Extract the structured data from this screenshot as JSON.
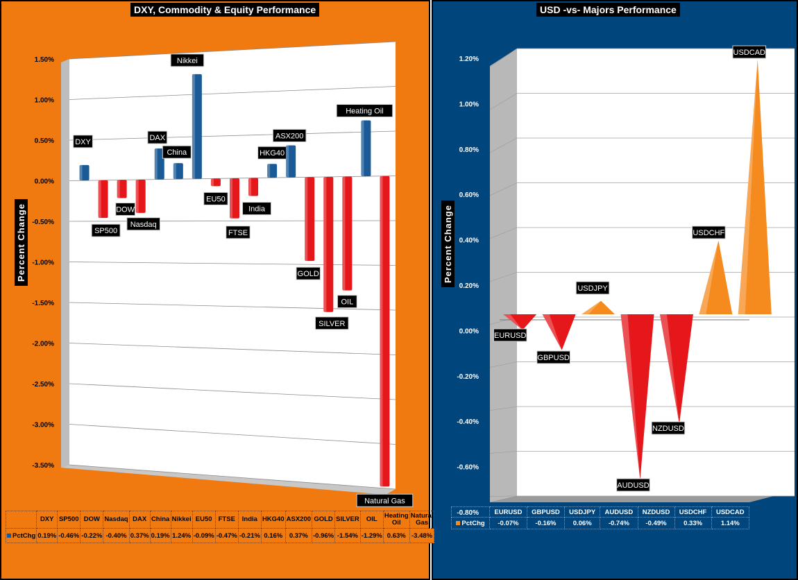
{
  "colors": {
    "left_bg": "#f07a10",
    "right_bg": "#00457c",
    "positive": "#1a5a96",
    "negative": "#e5171b",
    "positive_right": "#f58a1e",
    "negative_right": "#e5171b"
  },
  "left": {
    "title": "DXY, Commodity & Equity Performance",
    "ylabel": "Percent Change",
    "legend": "PctChg"
  },
  "right": {
    "title": "USD -vs- Majors Performance",
    "ylabel": "Percent Change",
    "legend": "PctChg"
  },
  "chart_data": [
    {
      "type": "bar",
      "title": "DXY, Commodity & Equity Performance",
      "ylabel": "Percent Change",
      "categories": [
        "DXY",
        "SP500",
        "DOW",
        "Nasdaq",
        "DAX",
        "China",
        "Nikkei",
        "EU50",
        "FTSE",
        "India",
        "HKG40",
        "ASX200",
        "GOLD",
        "SILVER",
        "OIL",
        "Heating Oil",
        "Natural Gas"
      ],
      "table_headers": [
        "DXY",
        "SP500",
        "DOW",
        "Nasdaq",
        "DAX",
        "China",
        "Nikkei",
        "EU50",
        "FTSE",
        "India",
        "HKG40",
        "ASX200",
        "GOLD",
        "SILVER",
        "OIL",
        "Heating\nOil",
        "Natural\nGas"
      ],
      "values": [
        0.19,
        -0.46,
        -0.22,
        -0.4,
        0.37,
        0.19,
        1.24,
        -0.09,
        -0.47,
        -0.21,
        0.16,
        0.37,
        -0.96,
        -1.54,
        -1.29,
        0.63,
        -3.48
      ],
      "value_labels": [
        "0.19%",
        "-0.46%",
        "-0.22%",
        "-0.40%",
        "0.37%",
        "0.19%",
        "1.24%",
        "-0.09%",
        "-0.47%",
        "-0.21%",
        "0.16%",
        "0.37%",
        "-0.96%",
        "-1.54%",
        "-1.29%",
        "0.63%",
        "-3.48%"
      ],
      "yticks": [
        "1.50%",
        "1.00%",
        "0.50%",
        "0.00%",
        "-0.50%",
        "-1.00%",
        "-1.50%",
        "-2.00%",
        "-2.50%",
        "-3.00%",
        "-3.50%"
      ],
      "ylim": [
        -3.5,
        1.5
      ],
      "series_name": "PctChg"
    },
    {
      "type": "bar",
      "title": "USD -vs- Majors Performance",
      "ylabel": "Percent Change",
      "categories": [
        "EURUSD",
        "GBPUSD",
        "USDJPY",
        "AUDUSD",
        "NZDUSD",
        "USDCHF",
        "USDCAD"
      ],
      "values": [
        -0.07,
        -0.16,
        0.06,
        -0.74,
        -0.49,
        0.33,
        1.14
      ],
      "value_labels": [
        "-0.07%",
        "-0.16%",
        "0.06%",
        "-0.74%",
        "-0.49%",
        "0.33%",
        "1.14%"
      ],
      "yticks": [
        "1.20%",
        "1.00%",
        "0.80%",
        "0.60%",
        "0.40%",
        "0.20%",
        "0.00%",
        "-0.20%",
        "-0.40%",
        "-0.60%",
        "-0.80%"
      ],
      "ylim": [
        -0.8,
        1.2
      ],
      "series_name": "PctChg"
    }
  ]
}
